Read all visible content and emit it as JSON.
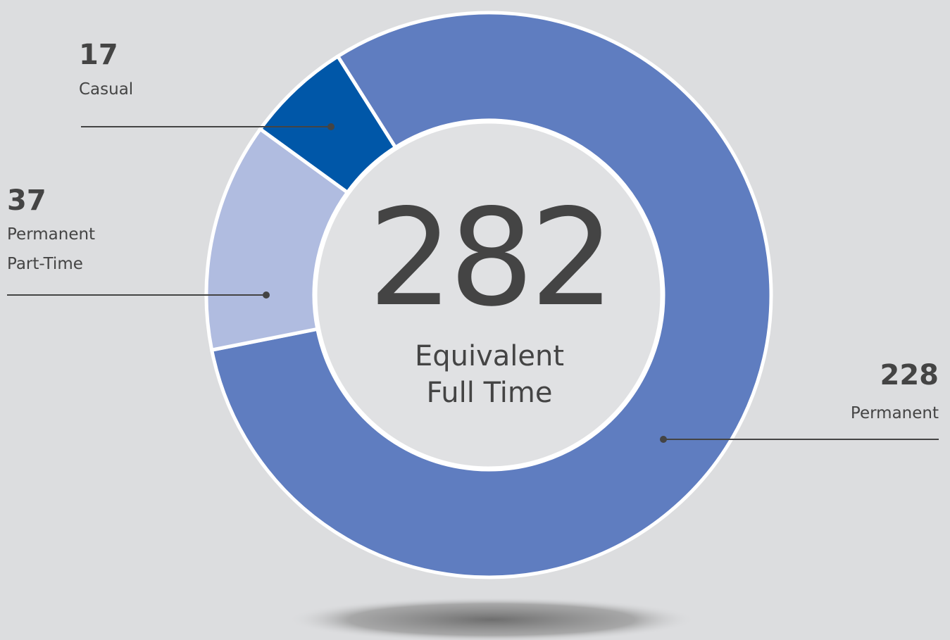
{
  "chart_data": {
    "type": "donut",
    "categories": [
      "Permanent",
      "Permanent Part-Time",
      "Casual"
    ],
    "values": [
      228,
      37,
      17
    ],
    "colors": [
      "#5f7dc0",
      "#b0bce0",
      "#0057a8"
    ],
    "center_value": 282,
    "center_label": "Equivalent Full Time"
  }
}
